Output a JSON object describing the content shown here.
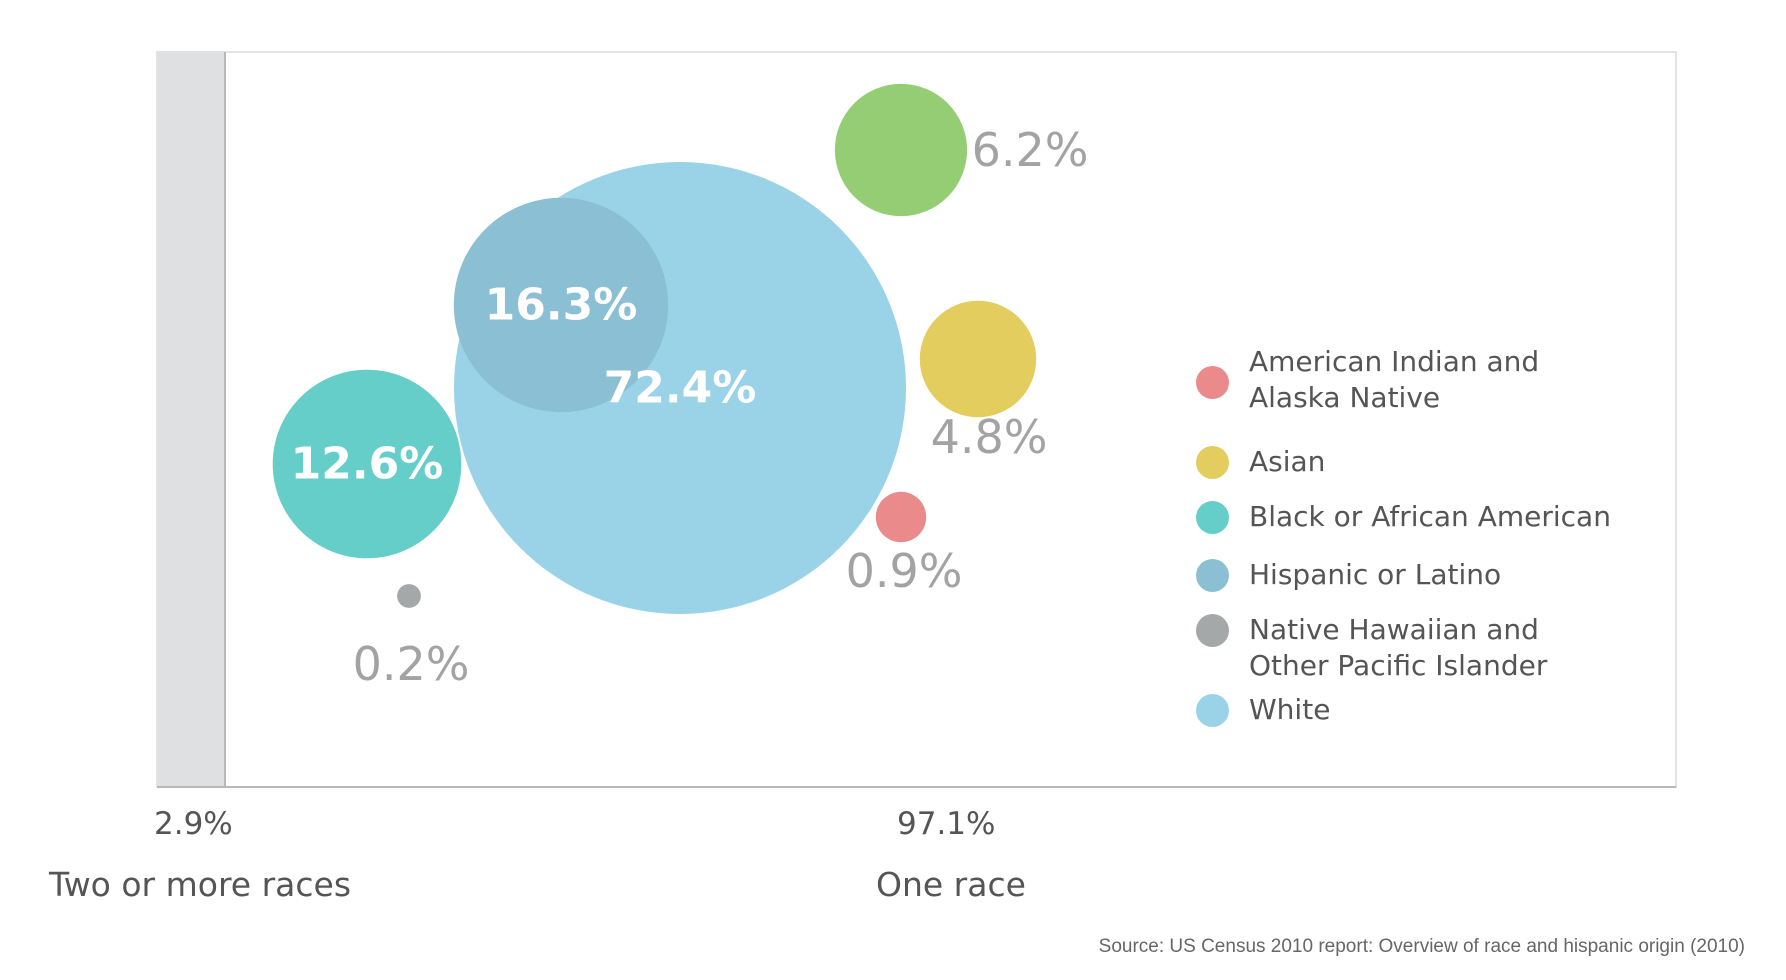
{
  "chart_data": {
    "type": "bubble",
    "title": "",
    "source": "Source: US Census 2010 report: Overview of race and hispanic origin (2010)",
    "groups": [
      {
        "label": "Two or more races",
        "value_label": "2.9%",
        "value": 2.9
      },
      {
        "label": "One race",
        "value_label": "97.1%",
        "value": 97.1
      }
    ],
    "bubbles": [
      {
        "name": "White",
        "value": 72.4,
        "label": "72.4%",
        "color": "#9ad3e8",
        "label_inside": true
      },
      {
        "name": "Hispanic or Latino",
        "value": 16.3,
        "label": "16.3%",
        "color": "#8bbfd3",
        "label_inside": true
      },
      {
        "name": "Black or African American",
        "value": 12.6,
        "label": "12.6%",
        "color": "#66cec9",
        "label_inside": true
      },
      {
        "name": "Native Hawaiian and Other Pacific Islander",
        "value": 0.2,
        "label": "0.2%",
        "color": "#a5a8a8",
        "label_inside": false
      },
      {
        "name": "Asian",
        "value": 4.8,
        "label": "4.8%",
        "color": "#e3cd5e",
        "label_inside": false
      },
      {
        "name": "American Indian and Alaska Native",
        "value": 0.9,
        "label": "0.9%",
        "color": "#ea8a8a",
        "label_inside": false
      },
      {
        "name": "",
        "value": 6.2,
        "label": "6.2%",
        "color": "#94cd73",
        "label_inside": false
      }
    ],
    "legend": [
      {
        "label": "American Indian and Alaska Native",
        "color": "#ea8a8a"
      },
      {
        "label": "Asian",
        "color": "#e3cd5e"
      },
      {
        "label": "Black or African American",
        "color": "#66cec9"
      },
      {
        "label": "Hispanic or Latino",
        "color": "#8bbfd3"
      },
      {
        "label": "Native Hawaiian and Other Pacific Islander",
        "color": "#a5a8a8"
      },
      {
        "label": "White",
        "color": "#9ad3e8"
      }
    ],
    "legend_position": "right"
  }
}
